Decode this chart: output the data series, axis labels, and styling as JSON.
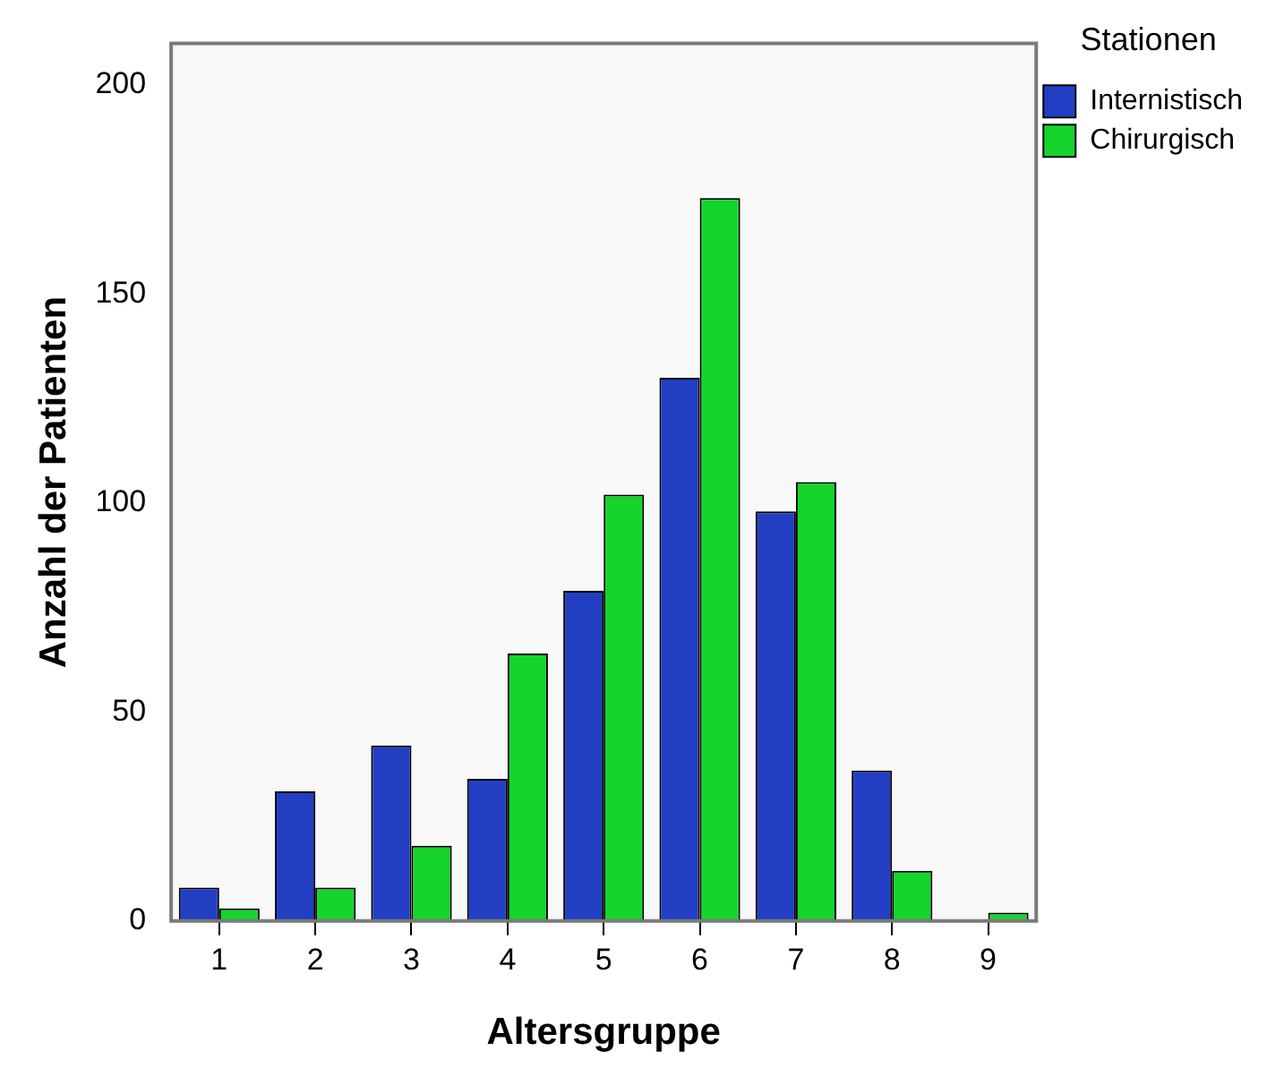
{
  "chart_data": {
    "type": "bar",
    "xlabel": "Altersgruppe",
    "ylabel": "Anzahl der Patienten",
    "legend_title": "Stationen",
    "legend": "top right",
    "categories": [
      "1",
      "2",
      "3",
      "4",
      "5",
      "6",
      "7",
      "8",
      "9"
    ],
    "series": [
      {
        "name": "Internistisch",
        "color": "#223fc4",
        "values": [
          8,
          31,
          42,
          34,
          79,
          130,
          98,
          36,
          0
        ]
      },
      {
        "name": "Chirurgisch",
        "color": "#15d42c",
        "values": [
          3,
          8,
          18,
          64,
          102,
          173,
          105,
          12,
          2
        ]
      }
    ],
    "ylim": [
      0,
      210
    ],
    "yticks": [
      0,
      50,
      100,
      150,
      200
    ],
    "grid": false
  }
}
